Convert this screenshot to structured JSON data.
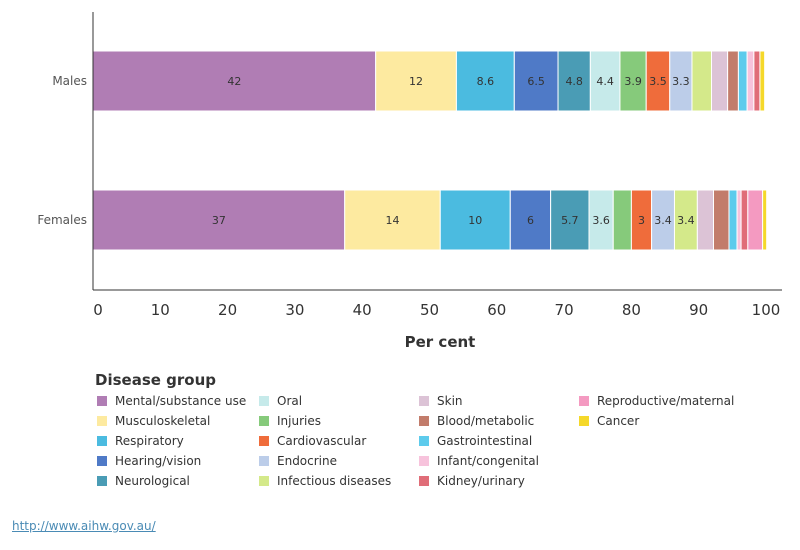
{
  "chart_data": {
    "type": "bar",
    "orientation": "horizontal",
    "stacked": true,
    "categories": [
      "Males",
      "Females"
    ],
    "xlabel": "Per cent",
    "xlim": [
      0,
      100
    ],
    "xticks": [
      0,
      10,
      20,
      30,
      40,
      50,
      60,
      70,
      80,
      90,
      100
    ],
    "grid": false,
    "legend_title": "Disease group",
    "legend_position": "bottom",
    "series": [
      {
        "name": "Mental/substance use",
        "color": "#b07db4",
        "values": [
          42,
          37.4
        ],
        "labels": [
          "42",
          "37"
        ]
      },
      {
        "name": "Musculoskeletal",
        "color": "#fdeaa0",
        "values": [
          12,
          14.2
        ],
        "labels": [
          "12",
          "14"
        ]
      },
      {
        "name": "Respiratory",
        "color": "#4bbbe0",
        "values": [
          8.6,
          10.4
        ],
        "labels": [
          "8.6",
          "10"
        ]
      },
      {
        "name": "Hearing/vision",
        "color": "#4f7ac7",
        "values": [
          6.5,
          6
        ],
        "labels": [
          "6.5",
          "6"
        ]
      },
      {
        "name": "Neurological",
        "color": "#4a9cb5",
        "values": [
          4.8,
          5.7
        ],
        "labels": [
          "4.8",
          "5.7"
        ]
      },
      {
        "name": "Oral",
        "color": "#c6eaea",
        "values": [
          4.4,
          3.6
        ],
        "labels": [
          "4.4",
          "3.6"
        ]
      },
      {
        "name": "Injuries",
        "color": "#86ca7b",
        "values": [
          3.9,
          2.7
        ],
        "labels": [
          "3.9",
          ""
        ]
      },
      {
        "name": "Cardiovascular",
        "color": "#ef6c3b",
        "values": [
          3.5,
          3
        ],
        "labels": [
          "3.5",
          "3"
        ]
      },
      {
        "name": "Endocrine",
        "color": "#bccde9",
        "values": [
          3.3,
          3.4
        ],
        "labels": [
          "3.3",
          "3.4"
        ]
      },
      {
        "name": "Infectious diseases",
        "color": "#d4e98a",
        "values": [
          2.9,
          3.4
        ],
        "labels": [
          "",
          "3.4"
        ]
      },
      {
        "name": "Skin",
        "color": "#dcc3d6",
        "values": [
          2.4,
          2.4
        ],
        "labels": [
          "",
          ""
        ]
      },
      {
        "name": "Blood/metabolic",
        "color": "#c27c6b",
        "values": [
          1.6,
          2.3
        ],
        "labels": [
          "",
          ""
        ]
      },
      {
        "name": "Gastrointestinal",
        "color": "#5dcbec",
        "values": [
          1.3,
          1.2
        ],
        "labels": [
          "",
          ""
        ]
      },
      {
        "name": "Infant/congenital",
        "color": "#f7c3dc",
        "values": [
          1.0,
          0.6
        ],
        "labels": [
          "",
          ""
        ]
      },
      {
        "name": "Kidney/urinary",
        "color": "#e06d78",
        "values": [
          0.9,
          1.0
        ],
        "labels": [
          "",
          ""
        ]
      },
      {
        "name": "Reproductive/maternal",
        "color": "#f49ac1",
        "values": [
          0,
          2.2
        ],
        "labels": [
          "",
          ""
        ]
      },
      {
        "name": "Cancer",
        "color": "#f5d82a",
        "values": [
          0.7,
          0.6
        ],
        "labels": [
          "",
          ""
        ]
      }
    ]
  },
  "footer": {
    "link_text": "http://www.aihw.gov.au/"
  }
}
